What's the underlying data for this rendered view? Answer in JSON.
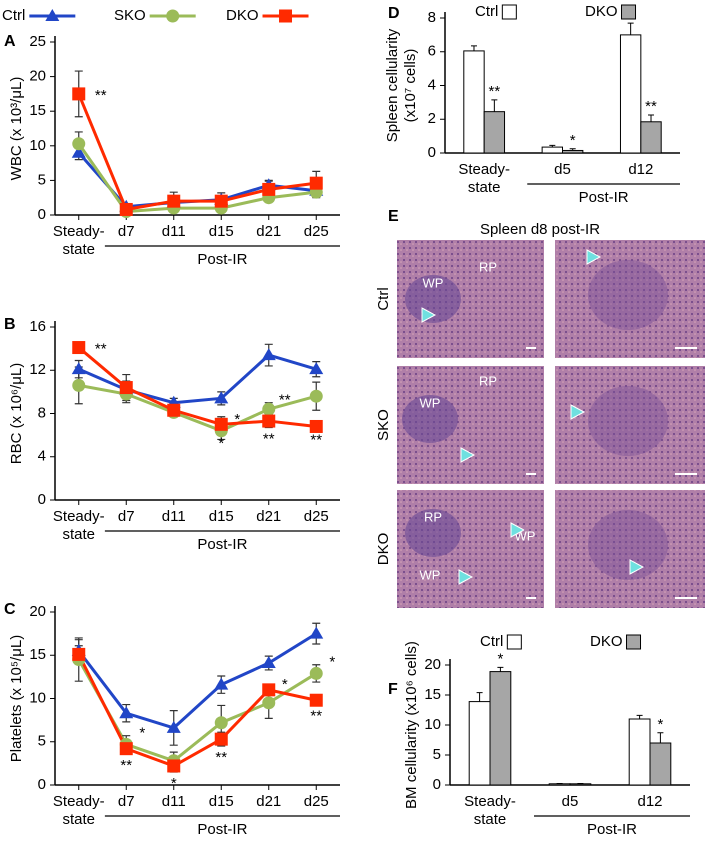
{
  "chart_data": [
    {
      "type": "line",
      "panel_label": "A",
      "ylabel": "WBC (x 10³/μL)",
      "categories": [
        "Steady-state",
        "d7",
        "d11",
        "d15",
        "d21",
        "d25"
      ],
      "group_label": "Post-IR",
      "ylim": [
        0,
        25
      ],
      "yticks": [
        0,
        5,
        10,
        15,
        20,
        25
      ],
      "series": [
        {
          "name": "Ctrl",
          "color": "#2146c7",
          "marker": "triangle",
          "values": [
            9,
            1.2,
            1.8,
            2.2,
            4.3,
            3.5
          ],
          "errors": [
            1,
            0.3,
            0.5,
            0.5,
            0.7,
            0.6
          ],
          "significance": [
            null,
            null,
            null,
            null,
            null,
            null
          ]
        },
        {
          "name": "SKO",
          "color": "#9bbb59",
          "marker": "circle",
          "values": [
            10.3,
            0.5,
            1,
            1,
            2.5,
            3.3
          ],
          "errors": [
            1.7,
            0.3,
            0.4,
            0.4,
            0.6,
            0.8
          ],
          "significance": [
            null,
            null,
            null,
            null,
            null,
            null
          ]
        },
        {
          "name": "DKO",
          "color": "#ff2a00",
          "marker": "square",
          "values": [
            17.5,
            0.8,
            2,
            2,
            3.7,
            4.6
          ],
          "errors": [
            3.3,
            0.4,
            1.3,
            1.2,
            1.2,
            1.7
          ],
          "significance": [
            "**",
            null,
            null,
            null,
            null,
            null
          ]
        }
      ]
    },
    {
      "type": "line",
      "panel_label": "B",
      "ylabel": "RBC (x 10⁶/μL)",
      "categories": [
        "Steady-state",
        "d7",
        "d11",
        "d15",
        "d21",
        "d25"
      ],
      "group_label": "Post-IR",
      "ylim": [
        0,
        16
      ],
      "yticks": [
        0,
        4,
        8,
        12,
        16
      ],
      "series": [
        {
          "name": "Ctrl",
          "color": "#2146c7",
          "marker": "triangle",
          "values": [
            12.1,
            10.2,
            9,
            9.4,
            13.4,
            12.1
          ],
          "errors": [
            0.8,
            0.8,
            0.4,
            0.6,
            1,
            0.7
          ],
          "significance": [
            null,
            null,
            null,
            null,
            null,
            null
          ]
        },
        {
          "name": "SKO",
          "color": "#9bbb59",
          "marker": "circle",
          "values": [
            10.6,
            9.8,
            8.1,
            6.4,
            8.4,
            9.6
          ],
          "errors": [
            1.7,
            0.8,
            0.4,
            0.8,
            0.6,
            1.3
          ],
          "significance": [
            null,
            null,
            null,
            "*",
            "**",
            null
          ]
        },
        {
          "name": "DKO",
          "color": "#ff2a00",
          "marker": "square",
          "values": [
            14.1,
            10.4,
            8.3,
            7,
            7.3,
            6.8
          ],
          "errors": [
            0.4,
            1.2,
            0.5,
            0.7,
            0.6,
            0.2
          ],
          "significance": [
            "**",
            null,
            null,
            "*",
            "**",
            "**"
          ]
        }
      ]
    },
    {
      "type": "line",
      "panel_label": "C",
      "ylabel": "Platelets (x 10⁵/μL)",
      "categories": [
        "Steady-state",
        "d7",
        "d11",
        "d15",
        "d21",
        "d25"
      ],
      "group_label": "Post-IR",
      "ylim": [
        0,
        20
      ],
      "yticks": [
        0,
        5,
        10,
        15,
        20
      ],
      "series": [
        {
          "name": "Ctrl",
          "color": "#2146c7",
          "marker": "triangle",
          "values": [
            15.5,
            8.3,
            6.6,
            11.6,
            14.1,
            17.5
          ],
          "errors": [
            1.3,
            1,
            2,
            1,
            0.8,
            1.2
          ],
          "significance": [
            null,
            null,
            null,
            null,
            null,
            null
          ]
        },
        {
          "name": "SKO",
          "color": "#9bbb59",
          "marker": "circle",
          "values": [
            14.5,
            4.7,
            2.8,
            7.2,
            9.5,
            12.9
          ],
          "errors": [
            2.5,
            1,
            1,
            2,
            1.8,
            1
          ],
          "significance": [
            null,
            "*",
            null,
            null,
            "*",
            "*"
          ]
        },
        {
          "name": "DKO",
          "color": "#ff2a00",
          "marker": "square",
          "values": [
            15.1,
            4.2,
            2.2,
            5.3,
            11,
            9.8
          ],
          "errors": [
            1,
            0.6,
            0.7,
            0.8,
            0.5,
            0.5
          ],
          "significance": [
            null,
            "**",
            "*",
            "**",
            null,
            "**"
          ]
        }
      ]
    },
    {
      "type": "bar",
      "panel_label": "D",
      "ylabel": [
        "Spleen cellularity",
        "(x10⁷ cells)"
      ],
      "categories": [
        "Steady-state",
        "d5",
        "d12"
      ],
      "group_label": "Post-IR",
      "ylim": [
        0,
        8
      ],
      "yticks": [
        0,
        2,
        4,
        6,
        8
      ],
      "series": [
        {
          "name": "Ctrl",
          "color": "#ffffff",
          "values": [
            6.05,
            0.35,
            7
          ],
          "errors": [
            0.3,
            0.1,
            0.7
          ],
          "significance": [
            null,
            null,
            null
          ]
        },
        {
          "name": "DKO",
          "color": "#a6a6a6",
          "values": [
            2.45,
            0.15,
            1.85
          ],
          "errors": [
            0.7,
            0.1,
            0.4
          ],
          "significance": [
            "**",
            "*",
            "**"
          ]
        }
      ]
    },
    {
      "type": "bar",
      "panel_label": "F",
      "ylabel": [
        "BM cellularity (x10⁶ cells)"
      ],
      "categories": [
        "Steady-state",
        "d5",
        "d12"
      ],
      "group_label": "Post-IR",
      "ylim": [
        0,
        20
      ],
      "yticks": [
        0,
        5,
        10,
        15,
        20
      ],
      "series": [
        {
          "name": "Ctrl",
          "color": "#ffffff",
          "values": [
            13.9,
            0.2,
            11
          ],
          "errors": [
            1.5,
            0.05,
            0.6
          ],
          "significance": [
            null,
            null,
            null
          ]
        },
        {
          "name": "DKO",
          "color": "#a6a6a6",
          "values": [
            18.9,
            0.2,
            7
          ],
          "errors": [
            0.7,
            0.05,
            1.7
          ],
          "significance": [
            "*",
            null,
            "*"
          ]
        }
      ]
    }
  ],
  "panel_e": {
    "panel_label": "E",
    "title": "Spleen d8 post-IR",
    "rows": [
      {
        "label": "Ctrl",
        "regions": [
          "WP",
          "RP"
        ]
      },
      {
        "label": "SKO",
        "regions": [
          "WP",
          "RP"
        ]
      },
      {
        "label": "DKO",
        "regions": [
          "RP",
          "WP",
          "WP"
        ]
      }
    ]
  }
}
